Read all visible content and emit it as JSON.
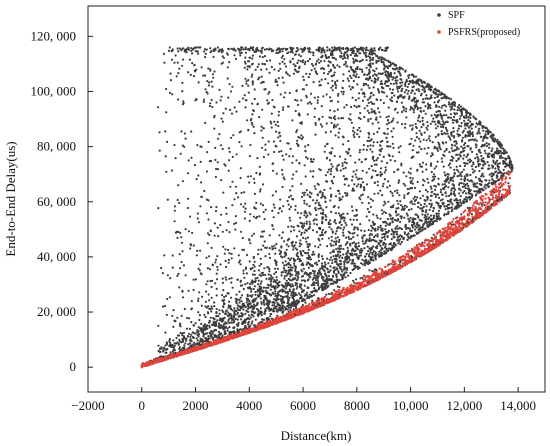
{
  "chart_data": {
    "type": "scatter",
    "title": "",
    "xlabel": "Distance(km)",
    "ylabel": "End-to-End Delay(us)",
    "xlim": [
      -2000,
      15000
    ],
    "ylim": [
      -9000,
      131000
    ],
    "x_ticks": [
      -2000,
      0,
      2000,
      4000,
      6000,
      8000,
      10000,
      12000,
      14000
    ],
    "x_tick_labels": [
      "−2000",
      "0",
      "2000",
      "4000",
      "6000",
      "8000",
      "10,000",
      "12,000",
      "14,000"
    ],
    "y_ticks": [
      0,
      20000,
      40000,
      60000,
      80000,
      100000,
      120000
    ],
    "y_tick_labels": [
      "0",
      "20, 000",
      "40, 000",
      "60, 000",
      "80, 000",
      "100, 000",
      "120, 000"
    ],
    "grid": false,
    "legend_position": "top-right",
    "series": [
      {
        "name": "SPF",
        "color": "#3d3d3d",
        "marker": "dot",
        "description_points": [
          [
            0,
            0
          ],
          [
            1000,
            3500
          ],
          [
            2000,
            8000
          ],
          [
            3000,
            14000
          ],
          [
            4000,
            20000
          ],
          [
            5000,
            26000
          ],
          [
            6000,
            30000
          ],
          [
            7000,
            35000
          ],
          [
            8000,
            40000
          ],
          [
            9000,
            46000
          ],
          [
            10000,
            52000
          ],
          [
            11000,
            58000
          ],
          [
            12000,
            62000
          ],
          [
            13000,
            66000
          ],
          [
            13700,
            72000
          ],
          [
            13400,
            90000
          ],
          [
            12500,
            104000
          ],
          [
            11500,
            113000
          ],
          [
            1000,
            115000
          ],
          [
            3000,
            115000
          ],
          [
            6000,
            115000
          ],
          [
            9000,
            115000
          ]
        ]
      },
      {
        "name": "PSFRS(proposed)",
        "color": "#e0443a",
        "marker": "dot",
        "description_points": [
          [
            0,
            0
          ],
          [
            2000,
            7000
          ],
          [
            4000,
            14000
          ],
          [
            6000,
            22000
          ],
          [
            8000,
            30000
          ],
          [
            10000,
            40000
          ],
          [
            12000,
            52000
          ],
          [
            13000,
            60000
          ],
          [
            13600,
            69000
          ]
        ]
      }
    ]
  }
}
